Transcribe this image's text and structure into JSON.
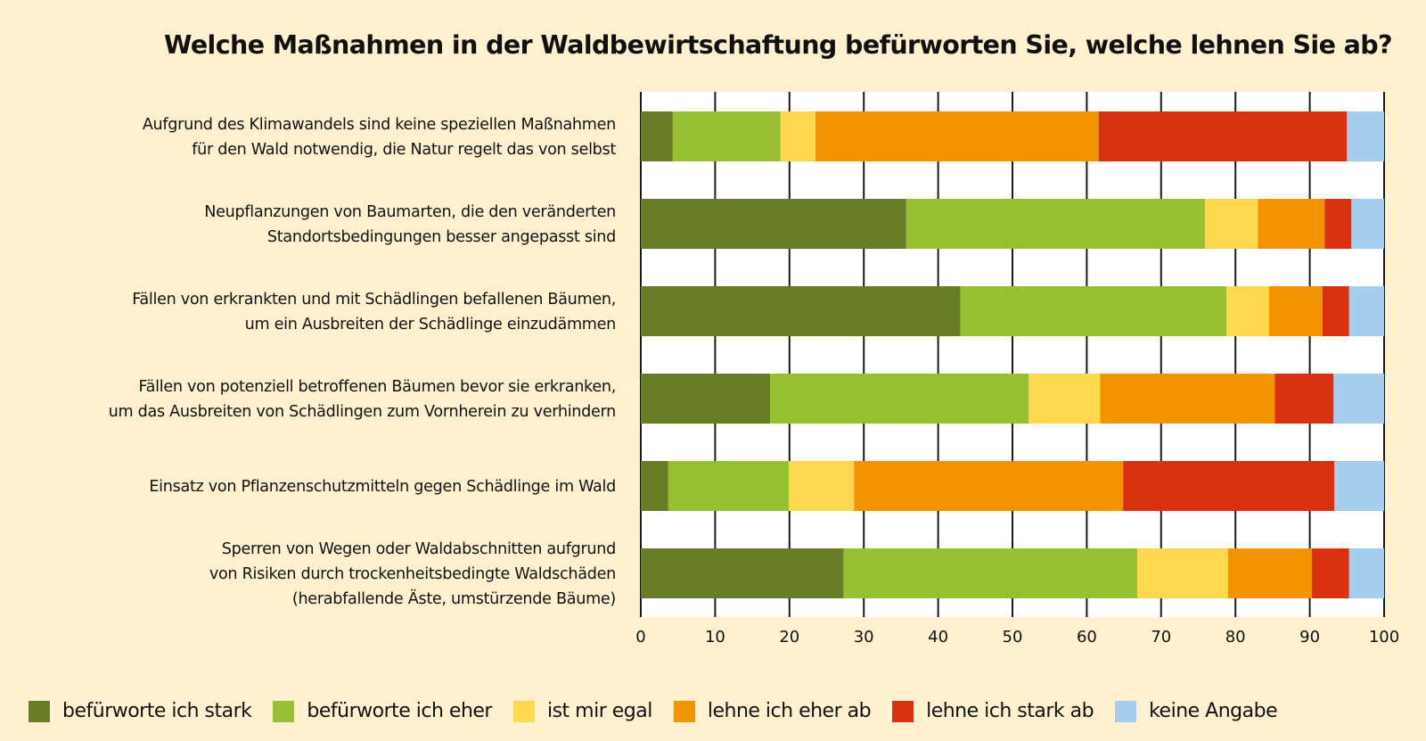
{
  "chart_data": {
    "type": "bar",
    "orientation": "horizontal",
    "stacked": true,
    "title": "Welche Maßnahmen in der Waldbewirtschaftung befürworten Sie, welche lehnen Sie ab?",
    "xlabel": "",
    "ylabel": "",
    "xlim": [
      0,
      100
    ],
    "xticks": [
      "0",
      "10",
      "20",
      "30",
      "40",
      "50",
      "60",
      "70",
      "80",
      "90",
      "100"
    ],
    "grid": "vertical",
    "legend_position": "bottom",
    "categories": [
      [
        "Aufgrund des Klimawandels sind keine speziellen Maßnahmen",
        "für den Wald notwendig, die Natur regelt das von selbst"
      ],
      [
        "Neupflanzungen von Baumarten, die den veränderten",
        "Standortsbedingungen besser angepasst sind"
      ],
      [
        "Fällen von erkrankten und mit Schädlingen befallenen Bäumen,",
        "um ein Ausbreiten der Schädlinge einzudämmen"
      ],
      [
        "Fällen von potenziell betroffenen Bäumen bevor sie erkranken,",
        "um das Ausbreiten von Schädlingen zum Vornherein zu verhindern"
      ],
      [
        "Einsatz von Pflanzenschutzmitteln gegen Schädlinge im Wald"
      ],
      [
        "Sperren von Wegen oder Waldabschnitten aufgrund",
        "von Risiken durch trockenheitsbedingte Waldschäden",
        "(herabfallende Äste, umstürzende Bäume)"
      ]
    ],
    "series": [
      {
        "name": "befürworte ich stark",
        "color": "#667d26",
        "values": [
          4.3,
          35.7,
          43.0,
          17.4,
          3.7,
          27.3
        ]
      },
      {
        "name": "befürworte ich eher",
        "color": "#96c031",
        "values": [
          14.5,
          40.2,
          35.8,
          34.8,
          16.2,
          39.5
        ]
      },
      {
        "name": "ist mir egal",
        "color": "#ffd84f",
        "values": [
          4.7,
          7.1,
          5.7,
          9.6,
          8.8,
          12.2
        ]
      },
      {
        "name": "lehne ich eher ab",
        "color": "#f29400",
        "values": [
          38.1,
          9.0,
          7.2,
          23.5,
          36.2,
          11.3
        ]
      },
      {
        "name": "lehne ich stark ab",
        "color": "#d7310f",
        "values": [
          33.4,
          3.6,
          3.6,
          7.9,
          28.4,
          5.0
        ]
      },
      {
        "name": "keine Angabe",
        "color": "#a4cdee",
        "values": [
          5.0,
          4.4,
          4.7,
          6.8,
          6.7,
          4.7
        ]
      }
    ]
  }
}
